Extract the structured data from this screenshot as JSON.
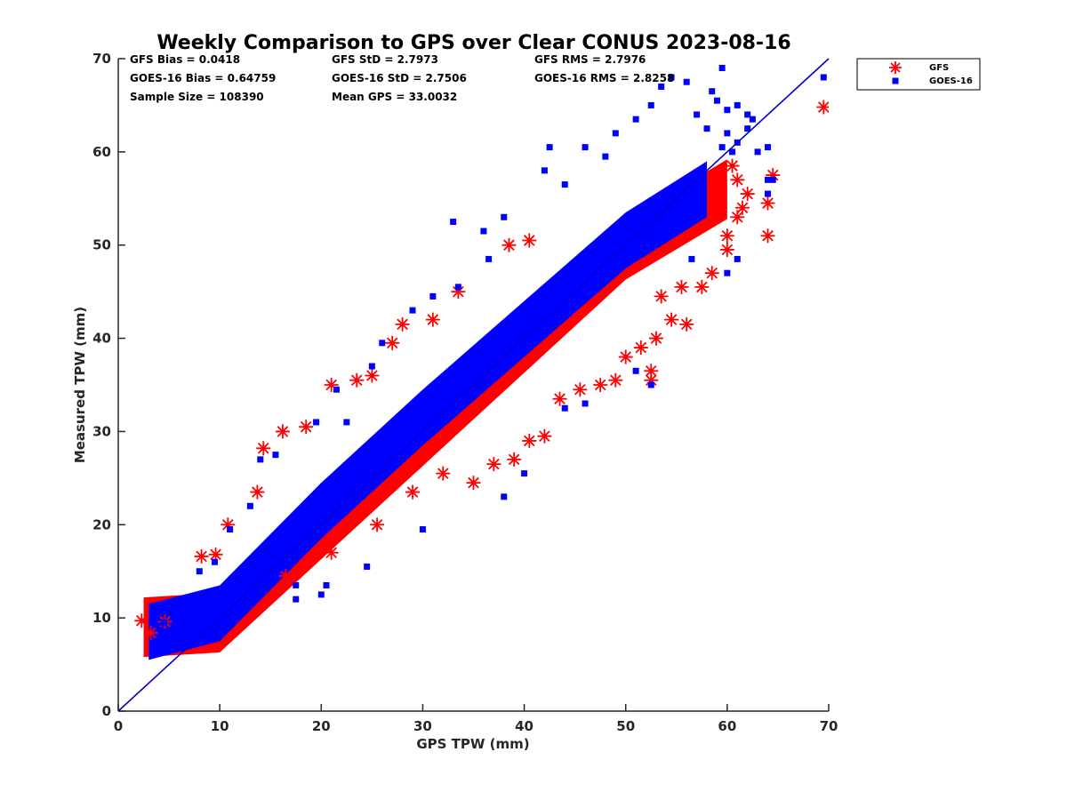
{
  "chart_data": {
    "type": "scatter",
    "title": "Weekly Comparison to GPS over Clear CONUS 2023-08-16",
    "xlabel": "GPS TPW (mm)",
    "ylabel": "Measured TPW (mm)",
    "xlim": [
      0,
      70
    ],
    "ylim": [
      0,
      70
    ],
    "xticks": [
      "0",
      "10",
      "20",
      "30",
      "40",
      "50",
      "60",
      "70"
    ],
    "yticks": [
      "0",
      "10",
      "20",
      "30",
      "40",
      "50",
      "60",
      "70"
    ],
    "grid": false,
    "legend_position": "outside-top-right",
    "reference_line": {
      "x": [
        0,
        70
      ],
      "y": [
        0,
        70
      ],
      "color": "#0000cc"
    },
    "stats": [
      "GFS Bias = 0.0418",
      "GFS StD = 2.7973",
      "GFS RMS = 2.7976",
      "GOES-16 Bias = 0.64759",
      "GOES-16 StD = 2.7506",
      "GOES-16 RMS = 2.8258",
      "Sample Size = 108390",
      "Mean GPS = 33.0032"
    ],
    "series": [
      {
        "name": "GFS",
        "marker": "asterisk",
        "color": "#ff0000",
        "cloud": [
          [
            2.5,
            9.0
          ],
          [
            10,
            9.5
          ],
          [
            20,
            19.5
          ],
          [
            30,
            29.5
          ],
          [
            40,
            39.5
          ],
          [
            50,
            49.5
          ],
          [
            60,
            56
          ]
        ],
        "points": [
          [
            2.3,
            9.7
          ],
          [
            3.2,
            8.4
          ],
          [
            4.6,
            9.6
          ],
          [
            8.2,
            16.6
          ],
          [
            9.6,
            16.8
          ],
          [
            10.8,
            20.0
          ],
          [
            13.7,
            23.5
          ],
          [
            14.3,
            28.2
          ],
          [
            16.2,
            30.0
          ],
          [
            18.5,
            30.5
          ],
          [
            21.0,
            35.0
          ],
          [
            23.5,
            35.5
          ],
          [
            25.0,
            36.0
          ],
          [
            27.0,
            39.5
          ],
          [
            28.0,
            41.5
          ],
          [
            31.0,
            42.0
          ],
          [
            33.5,
            45.0
          ],
          [
            38.5,
            50.0
          ],
          [
            40.5,
            50.5
          ],
          [
            16.5,
            14.5
          ],
          [
            21.0,
            17.0
          ],
          [
            25.5,
            20.0
          ],
          [
            29.0,
            23.5
          ],
          [
            32.0,
            25.5
          ],
          [
            35.0,
            24.5
          ],
          [
            37.0,
            26.5
          ],
          [
            39.0,
            27.0
          ],
          [
            40.5,
            29.0
          ],
          [
            42.0,
            29.5
          ],
          [
            43.5,
            33.5
          ],
          [
            45.5,
            34.5
          ],
          [
            47.5,
            35.0
          ],
          [
            49.0,
            35.5
          ],
          [
            52.5,
            36.5
          ],
          [
            52.5,
            35.5
          ],
          [
            50.0,
            38.0
          ],
          [
            51.5,
            39.0
          ],
          [
            53.0,
            40.0
          ],
          [
            54.5,
            42.0
          ],
          [
            56.0,
            41.5
          ],
          [
            53.5,
            44.5
          ],
          [
            55.5,
            45.5
          ],
          [
            57.5,
            45.5
          ],
          [
            58.5,
            47.0
          ],
          [
            60.0,
            49.5
          ],
          [
            60.0,
            51.0
          ],
          [
            61.0,
            53.0
          ],
          [
            61.5,
            54.0
          ],
          [
            62.0,
            55.5
          ],
          [
            61.0,
            57.0
          ],
          [
            60.5,
            58.5
          ],
          [
            64.0,
            54.5
          ],
          [
            64.0,
            51.0
          ],
          [
            64.5,
            57.5
          ],
          [
            69.5,
            64.8
          ]
        ]
      },
      {
        "name": "GOES-16",
        "marker": "square",
        "color": "#0000ff",
        "cloud": [
          [
            3.0,
            8.5
          ],
          [
            10,
            10.5
          ],
          [
            20,
            21.5
          ],
          [
            30,
            31.5
          ],
          [
            40,
            41.0
          ],
          [
            50,
            50.5
          ],
          [
            58,
            56
          ]
        ],
        "points": [
          [
            3.5,
            6.5
          ],
          [
            4.0,
            6.8
          ],
          [
            5.0,
            7.5
          ],
          [
            4.5,
            9.5
          ],
          [
            3.8,
            10.0
          ],
          [
            8.0,
            15.0
          ],
          [
            9.5,
            16.0
          ],
          [
            11.0,
            19.5
          ],
          [
            13.0,
            22.0
          ],
          [
            14.0,
            27.0
          ],
          [
            15.5,
            27.5
          ],
          [
            19.5,
            31.0
          ],
          [
            21.5,
            34.5
          ],
          [
            22.5,
            31.0
          ],
          [
            25.0,
            37.0
          ],
          [
            26.0,
            39.5
          ],
          [
            29.0,
            43.0
          ],
          [
            31.0,
            44.5
          ],
          [
            33.5,
            45.5
          ],
          [
            36.5,
            48.5
          ],
          [
            33.0,
            52.5
          ],
          [
            36.0,
            51.5
          ],
          [
            38.0,
            53.0
          ],
          [
            42.0,
            58.0
          ],
          [
            42.5,
            60.5
          ],
          [
            44.0,
            56.5
          ],
          [
            46.0,
            60.5
          ],
          [
            48.0,
            59.5
          ],
          [
            49.0,
            62.0
          ],
          [
            51.0,
            63.5
          ],
          [
            52.5,
            65.0
          ],
          [
            53.5,
            67.0
          ],
          [
            54.5,
            68.0
          ],
          [
            56.0,
            67.5
          ],
          [
            57.0,
            64.0
          ],
          [
            58.0,
            62.5
          ],
          [
            58.5,
            66.5
          ],
          [
            59.5,
            60.5
          ],
          [
            60.5,
            60.0
          ],
          [
            60.0,
            62.0
          ],
          [
            61.0,
            61.0
          ],
          [
            62.0,
            62.5
          ],
          [
            63.0,
            60.0
          ],
          [
            64.0,
            60.5
          ],
          [
            64.0,
            57.0
          ],
          [
            64.5,
            57.0
          ],
          [
            64.0,
            55.5
          ],
          [
            59.0,
            65.5
          ],
          [
            60.0,
            64.5
          ],
          [
            61.0,
            65.0
          ],
          [
            62.0,
            64.0
          ],
          [
            62.5,
            63.5
          ],
          [
            59.5,
            69.0
          ],
          [
            69.5,
            68.0
          ],
          [
            60.0,
            47.0
          ],
          [
            61.0,
            48.5
          ],
          [
            56.5,
            48.5
          ],
          [
            52.5,
            35.0
          ],
          [
            51.0,
            36.5
          ],
          [
            46.0,
            33.0
          ],
          [
            44.0,
            32.5
          ],
          [
            40.0,
            25.5
          ],
          [
            38.0,
            23.0
          ],
          [
            30.0,
            19.5
          ],
          [
            24.5,
            15.5
          ],
          [
            20.5,
            13.5
          ],
          [
            17.5,
            13.5
          ],
          [
            17.5,
            12.0
          ],
          [
            20.0,
            12.5
          ]
        ]
      }
    ]
  }
}
